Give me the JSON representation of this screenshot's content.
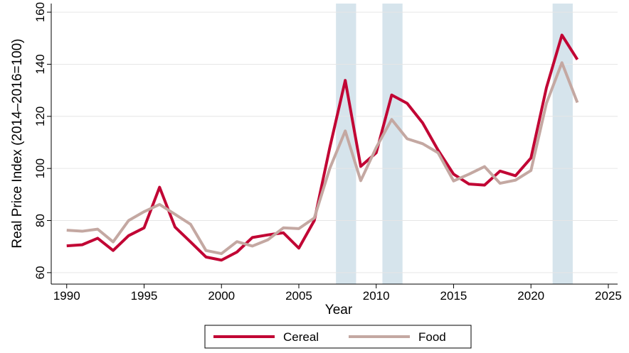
{
  "chart_data": {
    "type": "line",
    "x_label": "Year",
    "y_label": "Real Price Index (2014–2016=100)",
    "x": [
      1990,
      1991,
      1992,
      1993,
      1994,
      1995,
      1996,
      1997,
      1998,
      1999,
      2000,
      2001,
      2002,
      2003,
      2004,
      2005,
      2006,
      2007,
      2008,
      2009,
      2010,
      2011,
      2012,
      2013,
      2014,
      2015,
      2016,
      2017,
      2018,
      2019,
      2020,
      2021,
      2022,
      2023
    ],
    "series": [
      {
        "name": "Cereal",
        "color": "#c10534",
        "values": [
          70.3,
          70.7,
          73.2,
          68.5,
          74.2,
          77.2,
          92.8,
          77.5,
          71.8,
          66.0,
          64.8,
          67.9,
          73.5,
          74.5,
          75.3,
          69.4,
          80.0,
          108,
          133.8,
          100.8,
          106,
          128.2,
          125,
          117.5,
          107,
          97.8,
          94,
          93.6,
          99.0,
          97.2,
          104,
          131,
          151.2,
          141.8
        ]
      },
      {
        "name": "Food",
        "color": "#c4a8a2",
        "values": [
          76.3,
          75.9,
          76.7,
          71.8,
          80.0,
          83.4,
          86.2,
          82.4,
          78.6,
          68.5,
          67.3,
          71.9,
          70.2,
          72.6,
          77.2,
          76.9,
          81,
          100,
          114.4,
          95.3,
          108,
          118.8,
          111.4,
          109.5,
          106,
          95.2,
          97.8,
          100.7,
          94.3,
          95.5,
          99.2,
          125,
          140.6,
          125.3
        ]
      }
    ],
    "shaded_periods": [
      [
        2007.4,
        2008.7
      ],
      [
        2010.4,
        2011.7
      ],
      [
        2021.4,
        2022.7
      ]
    ],
    "shade_color": "#d6e4ec",
    "xlim": [
      1989,
      2025.6
    ],
    "ylim": [
      55.6,
      163.3
    ],
    "xticks": [
      1990,
      1995,
      2000,
      2005,
      2010,
      2015,
      2020,
      2025
    ],
    "yticks": [
      60,
      80,
      100,
      120,
      140,
      160
    ],
    "grid": true,
    "legend_position": "bottom"
  }
}
